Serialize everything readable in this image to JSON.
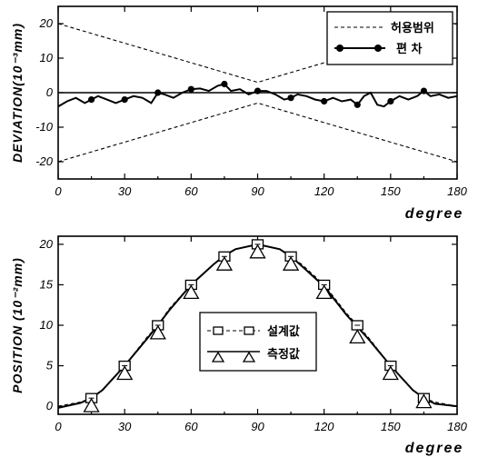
{
  "chart_data": [
    {
      "type": "line",
      "ylabel": "DEVIATION(10⁻³mm)",
      "xlabel": "degree",
      "xlim": [
        0,
        180
      ],
      "ylim": [
        -25,
        25
      ],
      "xticks": [
        "0",
        "30",
        "60",
        "90",
        "120",
        "150",
        "180"
      ],
      "yticks": [
        "20",
        "10",
        "0",
        "-10",
        "-20"
      ],
      "grid": false,
      "legend_position": "top-right",
      "series": [
        {
          "name": "허용범위",
          "style": "dashed",
          "segments": [
            [
              [
                0,
                20
              ],
              [
                90,
                3
              ],
              [
                180,
                20
              ]
            ],
            [
              [
                0,
                -20
              ],
              [
                90,
                -3
              ],
              [
                180,
                -20
              ]
            ]
          ]
        },
        {
          "name": "편 차",
          "style": "solid-with-markers",
          "x": [
            0,
            4,
            8,
            12,
            15,
            18,
            22,
            26,
            30,
            34,
            38,
            42,
            45,
            48,
            52,
            56,
            60,
            64,
            68,
            72,
            75,
            78,
            82,
            86,
            90,
            94,
            98,
            102,
            105,
            108,
            112,
            116,
            120,
            124,
            128,
            132,
            135,
            138,
            141,
            144,
            147,
            150,
            154,
            158,
            162,
            165,
            168,
            172,
            176,
            180
          ],
          "y": [
            -4,
            -2.5,
            -1.5,
            -3,
            -2,
            -1,
            -2,
            -3,
            -2,
            -1,
            -1.5,
            -3,
            0,
            -0.5,
            -1.5,
            0,
            1,
            1.2,
            0.5,
            2,
            2.5,
            0.5,
            1,
            -0.5,
            0.5,
            0.5,
            -0.5,
            -2,
            -1.5,
            -0.5,
            -1,
            -2,
            -2.5,
            -1.5,
            -2.5,
            -2,
            -3.5,
            -1,
            0,
            -3.5,
            -4,
            -2.5,
            -1,
            -2,
            -1,
            0.5,
            -1,
            -0.5,
            -1.5,
            -1
          ],
          "marker_x": [
            15,
            30,
            45,
            60,
            75,
            90,
            105,
            120,
            135,
            150,
            165
          ],
          "marker_y": [
            -2,
            -2,
            0,
            1,
            2.5,
            0.5,
            -1.5,
            -2.5,
            -3.5,
            -2.5,
            0.5
          ]
        }
      ]
    },
    {
      "type": "line",
      "ylabel": "POSITION (10⁻²mm)",
      "xlabel": "degree",
      "xlim": [
        0,
        180
      ],
      "ylim": [
        -1,
        21
      ],
      "xticks": [
        "0",
        "30",
        "60",
        "90",
        "120",
        "150",
        "180"
      ],
      "yticks": [
        "20",
        "15",
        "10",
        "5",
        "0"
      ],
      "grid": false,
      "legend_position": "center",
      "series": [
        {
          "name": "설계값",
          "style": "dashed-with-square-markers",
          "x": [
            0,
            10,
            15,
            20,
            30,
            40,
            45,
            50,
            60,
            70,
            75,
            80,
            90,
            100,
            105,
            110,
            120,
            130,
            135,
            140,
            150,
            160,
            165,
            170,
            180
          ],
          "y": [
            0,
            0.5,
            1,
            2,
            5,
            8.5,
            10,
            12,
            15,
            17.5,
            18.5,
            19.4,
            20,
            19.4,
            18.5,
            17.5,
            15,
            11.5,
            10,
            8.5,
            5,
            2,
            1,
            0.5,
            0
          ],
          "marker_x": [
            15,
            30,
            45,
            60,
            75,
            90,
            105,
            120,
            135,
            150,
            165
          ],
          "marker_y": [
            1,
            5,
            10,
            15,
            18.5,
            20,
            18.5,
            15,
            10,
            5,
            1
          ]
        },
        {
          "name": "측정값",
          "style": "solid-with-triangle-markers",
          "x": [
            0,
            10,
            15,
            20,
            30,
            40,
            45,
            50,
            60,
            70,
            75,
            80,
            90,
            100,
            105,
            110,
            120,
            130,
            135,
            140,
            150,
            160,
            165,
            170,
            180
          ],
          "y": [
            -0.2,
            0.4,
            1,
            2,
            5,
            8.3,
            10,
            11.8,
            15,
            17.5,
            18.6,
            19.4,
            20,
            19.4,
            18.5,
            17.3,
            14.8,
            11.3,
            9.8,
            8.3,
            5,
            2,
            1,
            0.3,
            0
          ],
          "marker_x": [
            15,
            30,
            45,
            60,
            75,
            90,
            105,
            120,
            135,
            150,
            165
          ],
          "marker_y": [
            0,
            4,
            9,
            14,
            17.5,
            19,
            17.5,
            14,
            8.5,
            4,
            0.5
          ]
        }
      ]
    }
  ]
}
